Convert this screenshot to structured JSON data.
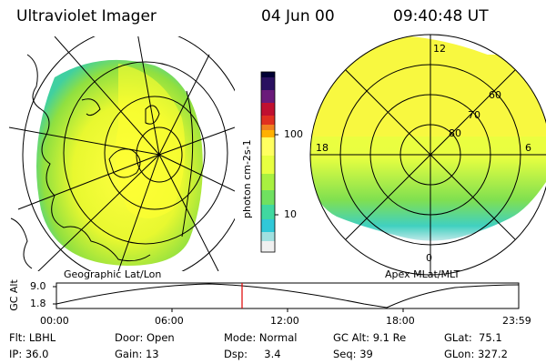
{
  "header": {
    "instrument": "Ultraviolet Imager",
    "date": "04 Jun 00",
    "time": "09:40:48 UT"
  },
  "left_panel": {
    "caption": "Geographic Lat/Lon"
  },
  "right_panel": {
    "caption": "Apex MLat/MLT",
    "mlt_labels": [
      "12",
      "18",
      "6",
      "0"
    ],
    "lat_labels": [
      "80",
      "70",
      "60"
    ]
  },
  "colorbar": {
    "unit": "photon cm-2s-1",
    "ticks": [
      "100",
      "10"
    ],
    "colors": [
      "#000033",
      "#2a1060",
      "#6a1a7a",
      "#c01030",
      "#e03020",
      "#f08020",
      "#ffb000",
      "#ffff60",
      "#e8ff40",
      "#a8f040",
      "#70e060",
      "#40d8a0",
      "#30c8d8",
      "#a0e0e0",
      "#f0f0f0"
    ]
  },
  "altitude_plot": {
    "ylabel": "GC Alt",
    "yticks": [
      "9.0",
      "1.8"
    ],
    "xticks": [
      "00:00",
      "06:00",
      "12:00",
      "18:00",
      "23:59"
    ],
    "cursor_color": "#e00000"
  },
  "info": {
    "flt": "Flt: LBHL",
    "ip": "IP: 36.0",
    "door": "Door: Open",
    "gain": "Gain: 13",
    "mode": "Mode: Normal",
    "dsp": "Dsp:     3.4",
    "gcalt": "GC Alt: 9.1 Re",
    "seq": "Seq: 39",
    "glat": "GLat:  75.1",
    "glon": "GLon: 327.2"
  }
}
